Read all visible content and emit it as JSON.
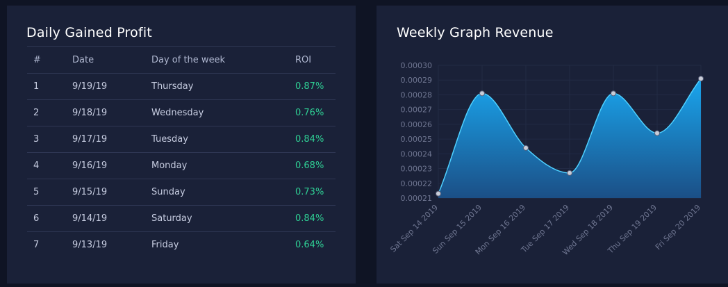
{
  "left_panel": {
    "title": "Daily Gained Profit",
    "columns": [
      "#",
      "Date",
      "Day of the week",
      "ROI"
    ],
    "rows": [
      {
        "num": "1",
        "date": "9/19/19",
        "day": "Thursday",
        "roi": "0.87%"
      },
      {
        "num": "2",
        "date": "9/18/19",
        "day": "Wednesday",
        "roi": "0.76%"
      },
      {
        "num": "3",
        "date": "9/17/19",
        "day": "Tuesday",
        "roi": "0.84%"
      },
      {
        "num": "4",
        "date": "9/16/19",
        "day": "Monday",
        "roi": "0.68%"
      },
      {
        "num": "5",
        "date": "9/15/19",
        "day": "Sunday",
        "roi": "0.73%"
      },
      {
        "num": "6",
        "date": "9/14/19",
        "day": "Saturday",
        "roi": "0.84%"
      },
      {
        "num": "7",
        "date": "9/13/19",
        "day": "Friday",
        "roi": "0.64%"
      }
    ],
    "roi_color": "#2fd095"
  },
  "right_panel": {
    "title": "Weekly Graph Revenue"
  },
  "chart_data": {
    "type": "area",
    "title": "Weekly Graph Revenue",
    "categories": [
      "Sat Sep 14 2019",
      "Sun Sep 15 2019",
      "Mon Sep 16 2019",
      "Tue Sep 17 2019",
      "Wed Sep 18 2019",
      "Thu Sep 19 2019",
      "Fri Sep 20 2019"
    ],
    "values": [
      0.000213,
      0.000281,
      0.000244,
      0.000227,
      0.000281,
      0.000254,
      0.000291
    ],
    "ylim": [
      0.00021,
      0.0003
    ],
    "yticks": [
      "0.00030",
      "0.00029",
      "0.00028",
      "0.00027",
      "0.00026",
      "0.00025",
      "0.00024",
      "0.00023",
      "0.00022",
      "0.00021"
    ],
    "xlabel": "",
    "ylabel": "",
    "color_top": "#1aa6ee",
    "color_bottom": "#1b4f86",
    "line_color": "#4fd0ff"
  }
}
